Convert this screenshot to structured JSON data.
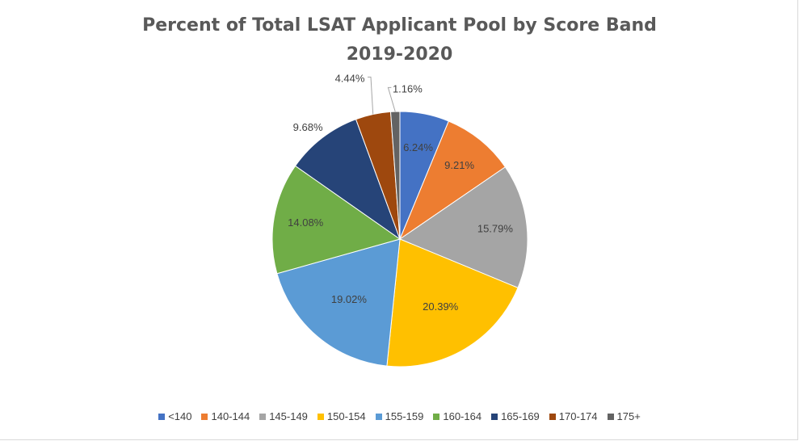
{
  "chart_data": {
    "type": "pie",
    "title": "Percent of Total LSAT Applicant Pool by Score Band",
    "subtitle": "2019-2020",
    "categories": [
      "<140",
      "140-144",
      "145-149",
      "150-154",
      "155-159",
      "160-164",
      "165-169",
      "170-174",
      "175+"
    ],
    "values": [
      6.24,
      9.21,
      15.79,
      20.39,
      19.02,
      14.08,
      9.68,
      4.44,
      1.16
    ],
    "labels": [
      "6.24%",
      "9.21%",
      "15.79%",
      "20.39%",
      "19.02%",
      "14.08%",
      "9.68%",
      "4.44%",
      "1.16%"
    ],
    "colors": [
      "#4472c4",
      "#ed7d31",
      "#a5a5a5",
      "#ffc000",
      "#5b9bd5",
      "#70ad47",
      "#264478",
      "#9e480e",
      "#636363"
    ],
    "legend_position": "bottom"
  }
}
